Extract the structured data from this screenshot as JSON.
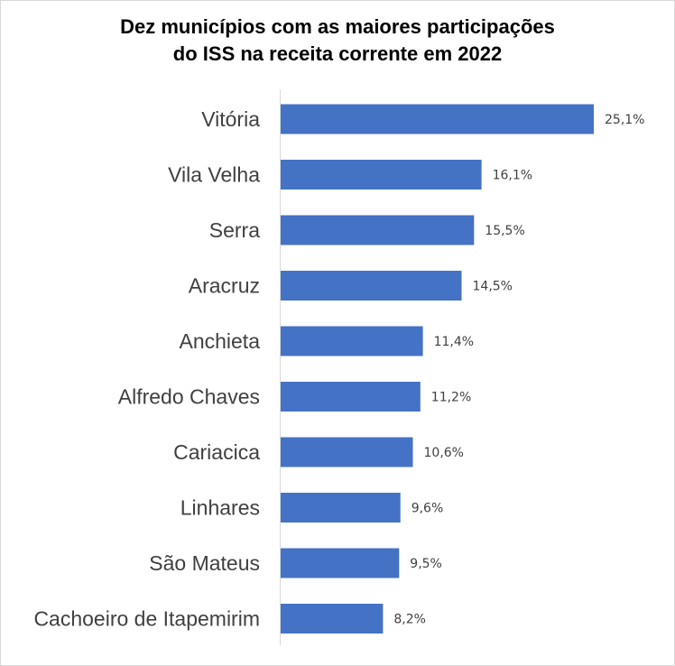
{
  "chart_data": {
    "type": "bar",
    "orientation": "horizontal",
    "title": [
      "Dez municípios com as maiores participações",
      "do ISS na receita corrente em 2022"
    ],
    "categories": [
      "Vitória",
      "Vila Velha",
      "Serra",
      "Aracruz",
      "Anchieta",
      "Alfredo Chaves",
      "Cariacica",
      "Linhares",
      "São Mateus",
      "Cachoeiro de Itapemirim"
    ],
    "values": [
      25.1,
      16.1,
      15.5,
      14.5,
      11.4,
      11.2,
      10.6,
      9.6,
      9.5,
      8.2
    ],
    "data_labels": [
      "25,1%",
      "16,1%",
      "15,5%",
      "14,5%",
      "11,4%",
      "11,2%",
      "10,6%",
      "9,6%",
      "9,5%",
      "8,2%"
    ],
    "xlabel": "",
    "ylabel": "",
    "xlim": [
      0,
      25.1
    ],
    "grid": false,
    "legend": "none",
    "bar_color": "#4472c4",
    "axis_color": "#d9d9d9"
  }
}
